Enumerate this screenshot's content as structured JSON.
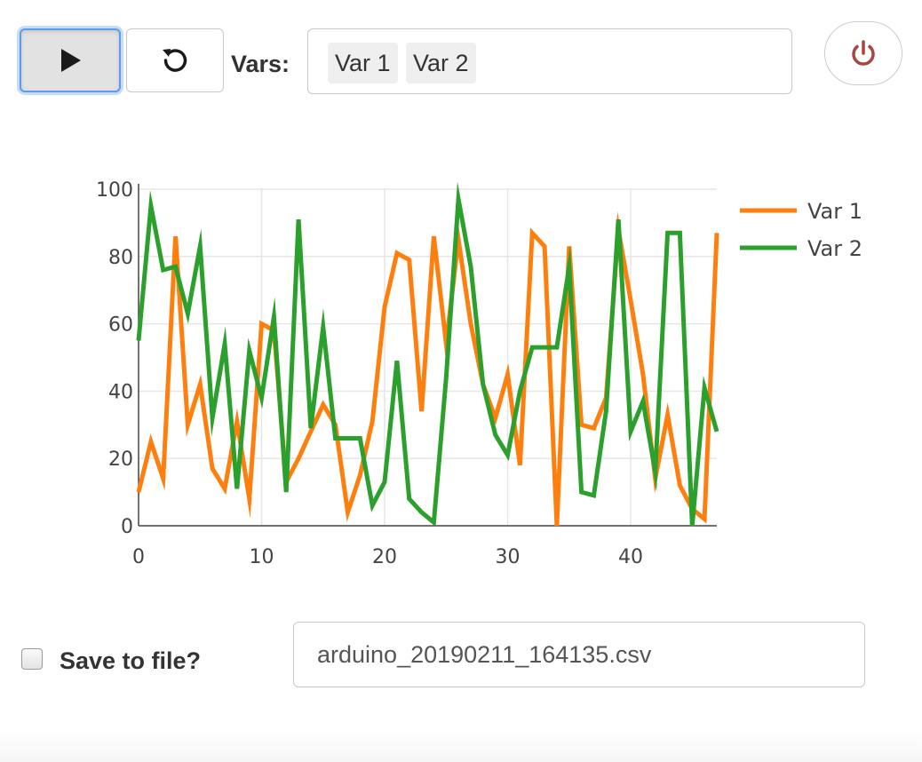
{
  "toolbar": {
    "play_icon": "play-icon",
    "reset_icon": "reset-icon",
    "power_icon": "power-icon",
    "power_color": "#a94442"
  },
  "vars": {
    "label": "Vars:",
    "tags": [
      "Var 1",
      "Var 2"
    ]
  },
  "save": {
    "checkbox_checked": false,
    "label": "Save to file?",
    "filename": "arduino_20190211_164135.csv"
  },
  "chart_data": {
    "type": "line",
    "title": "",
    "xlabel": "",
    "ylabel": "",
    "xlim": [
      0,
      47
    ],
    "ylim": [
      0,
      100
    ],
    "xticks": [
      0,
      10,
      20,
      30,
      40
    ],
    "yticks": [
      0,
      20,
      40,
      60,
      80,
      100
    ],
    "grid": true,
    "legend": "right",
    "series": [
      {
        "name": "Var 1",
        "color": "#ff7f0e",
        "values": [
          10,
          25,
          14,
          86,
          30,
          42,
          17,
          11,
          31,
          8,
          60,
          58,
          13,
          20,
          28,
          36,
          30,
          4,
          15,
          31,
          65,
          81,
          79,
          34,
          86,
          54,
          85,
          60,
          42,
          32,
          45,
          18,
          87,
          83,
          0,
          83,
          30,
          29,
          38,
          88,
          67,
          45,
          14,
          33,
          12,
          5,
          2,
          87
        ]
      },
      {
        "name": "Var 2",
        "color": "#2ca02c",
        "values": [
          55,
          95,
          76,
          77,
          63,
          83,
          32,
          54,
          11,
          52,
          38,
          62,
          10,
          91,
          29,
          59,
          26,
          26,
          26,
          6,
          13,
          49,
          8,
          4,
          1,
          44,
          97,
          77,
          42,
          27,
          21,
          40,
          53,
          53,
          53,
          77,
          10,
          9,
          34,
          91,
          28,
          37,
          16,
          87,
          87,
          0,
          41,
          28
        ]
      }
    ]
  }
}
